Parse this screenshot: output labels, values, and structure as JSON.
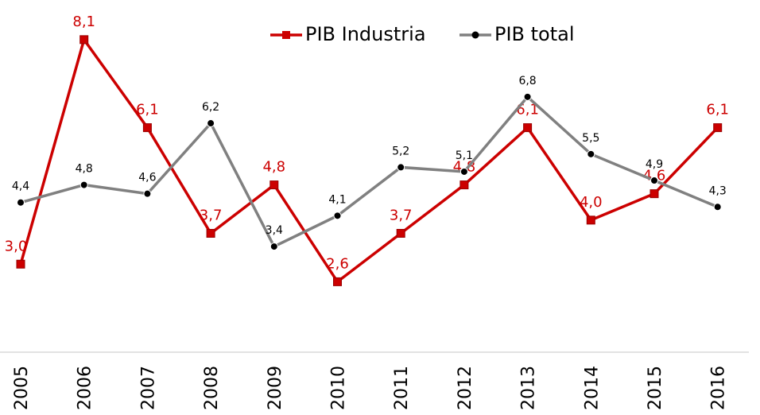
{
  "chart_data": {
    "type": "line",
    "categories": [
      "2005",
      "2006",
      "2007",
      "2008",
      "2009",
      "2010",
      "2011",
      "2012",
      "2013",
      "2014",
      "2015",
      "2016"
    ],
    "series": [
      {
        "name": "PIB Industria",
        "color": "#cc0000",
        "marker": "square",
        "values": [
          3.0,
          8.1,
          6.1,
          3.7,
          4.8,
          2.6,
          3.7,
          4.8,
          6.1,
          4.0,
          4.6,
          6.1
        ],
        "value_labels": [
          "3,0",
          "8,1",
          "6,1",
          "3,7",
          "4,8",
          "2,6",
          "3,7",
          "4,8",
          "6,1",
          "4,0",
          "4,6",
          "6,1"
        ]
      },
      {
        "name": "PIB total",
        "color": "#808080",
        "marker": "circle",
        "values": [
          4.4,
          4.8,
          4.6,
          6.2,
          3.4,
          4.1,
          5.2,
          5.1,
          6.8,
          5.5,
          4.9,
          4.3
        ],
        "value_labels": [
          "4,4",
          "4,8",
          "4,6",
          "6,2",
          "3,4",
          "4,1",
          "5,2",
          "5,1",
          "6,8",
          "5,5",
          "4,9",
          "4,3"
        ]
      }
    ],
    "ylim": [
      1,
      9
    ],
    "legend": "top"
  }
}
